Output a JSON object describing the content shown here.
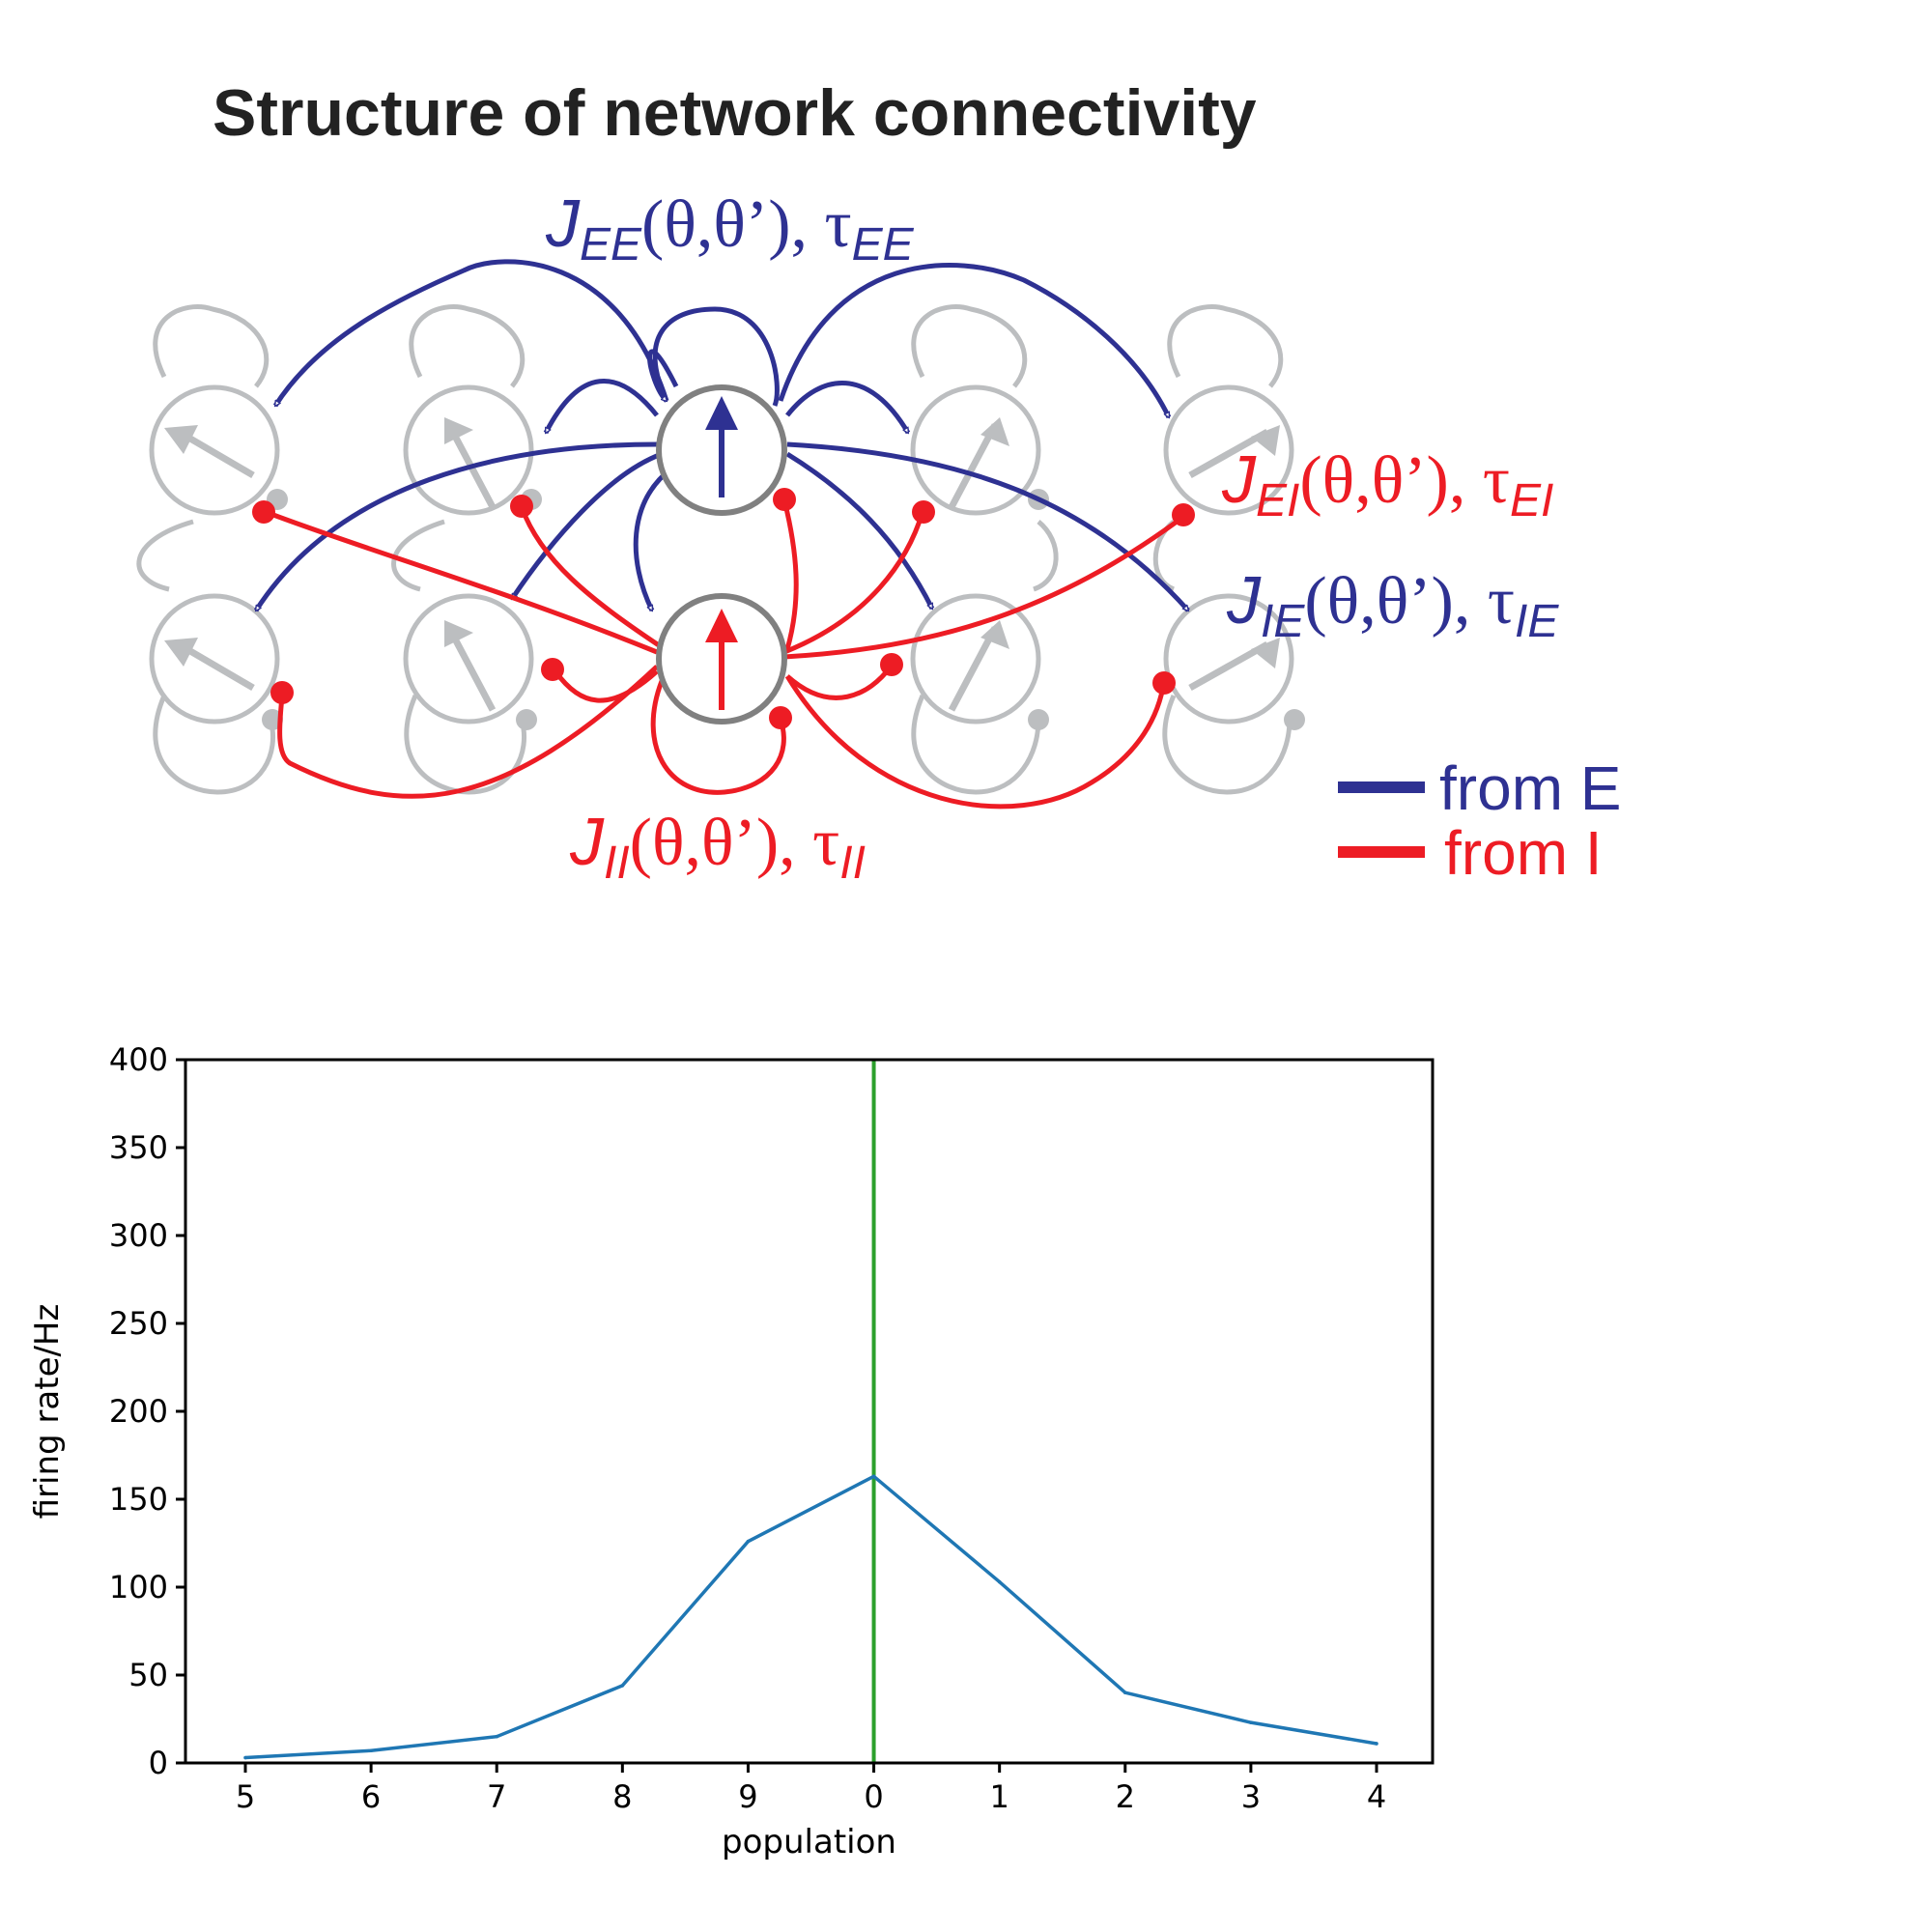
{
  "diagram": {
    "title": "Structure of network connectivity",
    "labels": {
      "ee": {
        "main": "J",
        "sub": "EE",
        "args": "(θ,θ’), τ",
        "tau_sub": "EE"
      },
      "ei": {
        "main": "J",
        "sub": "EI",
        "args": "(θ,θ’), τ",
        "tau_sub": "EI"
      },
      "ie": {
        "main": "J",
        "sub": "IE",
        "args": "(θ,θ’), τ",
        "tau_sub": "IE"
      },
      "ii": {
        "main": "J",
        "sub": "II",
        "args": "(θ,θ’), τ",
        "tau_sub": "II"
      }
    },
    "legend": {
      "from_e": "from E",
      "from_i": "from I"
    },
    "colors": {
      "excitatory": "#2e3192",
      "inhibitory": "#ed1c24",
      "inactive": "#bcbec0",
      "center_ring": "#808080"
    }
  },
  "chart_data": {
    "type": "line",
    "categories": [
      "5",
      "6",
      "7",
      "8",
      "9",
      "0",
      "1",
      "2",
      "3",
      "4"
    ],
    "series": [
      {
        "values": [
          3,
          7,
          15,
          44,
          126,
          163,
          103,
          40,
          23,
          11
        ],
        "color": "#1f77b4"
      }
    ],
    "vline": {
      "category": "0",
      "color": "#2ca02c"
    },
    "xlabel": "population",
    "ylabel": "firing rate/Hz",
    "ylim": [
      0,
      400
    ],
    "yticks": [
      0,
      50,
      100,
      150,
      200,
      250,
      300,
      350,
      400
    ],
    "grid": false
  }
}
